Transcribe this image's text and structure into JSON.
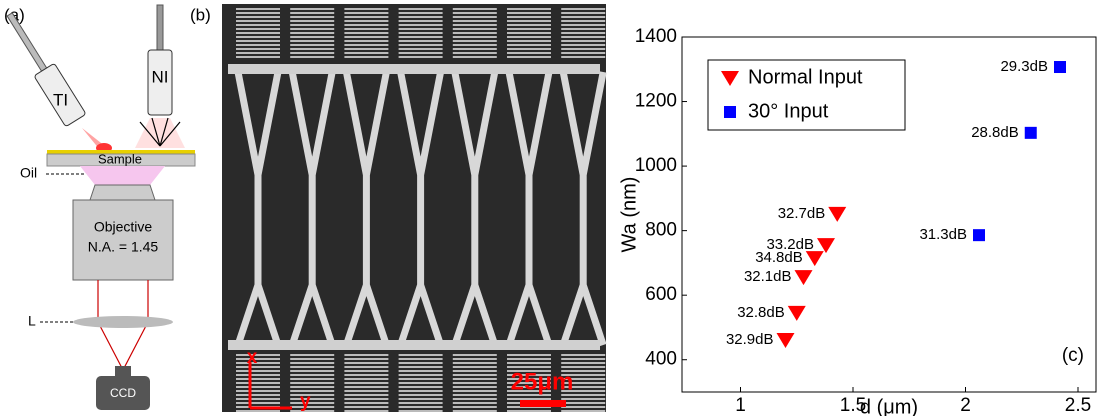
{
  "panel_a": {
    "label": "(a)",
    "ti": "TI",
    "ni": "NI",
    "sample": "Sample",
    "oil": "Oil",
    "objective": "Objective",
    "na": "N.A. = 1.45",
    "lens": "L",
    "camera": "CCD"
  },
  "panel_b": {
    "label": "(b)",
    "x_axis": "x",
    "y_axis": "y",
    "scale_bar": "25μm"
  },
  "chart_data": {
    "type": "scatter",
    "panel_label": "(c)",
    "x_label": "d (μm)",
    "y_label": "Wa (nm)",
    "xlim": [
      0.74,
      2.58
    ],
    "ylim": [
      300,
      1400
    ],
    "xticks": [
      1,
      1.5,
      2,
      2.5
    ],
    "yticks": [
      400,
      600,
      800,
      1000,
      1200,
      1400
    ],
    "legend": "upper left",
    "series": [
      {
        "name": "Normal Input",
        "color": "#ff0000",
        "marker": "triangle-down",
        "x": [
          1.43,
          1.38,
          1.33,
          1.28,
          1.25,
          1.2
        ],
        "values": [
          852,
          755,
          715,
          656,
          545,
          461
        ],
        "labels": [
          "32.7dB",
          "33.2dB",
          "34.8dB",
          "32.1dB",
          "32.8dB",
          "32.9dB"
        ]
      },
      {
        "name": "30° Input",
        "color": "#0000ff",
        "marker": "square",
        "x": [
          2.42,
          2.29,
          2.06
        ],
        "values": [
          1307,
          1103,
          786
        ],
        "labels": [
          "29.3dB",
          "28.8dB",
          "31.3dB"
        ]
      }
    ]
  }
}
